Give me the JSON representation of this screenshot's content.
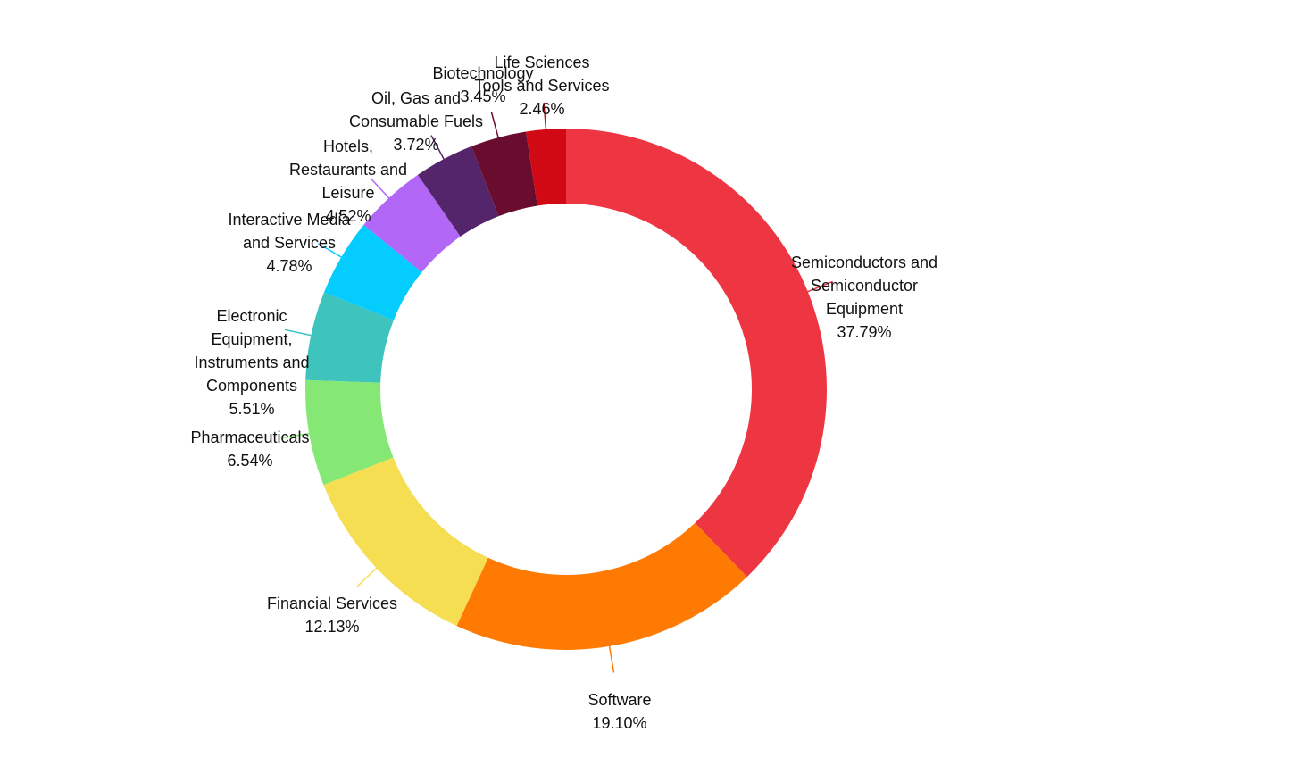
{
  "chart_data": {
    "type": "pie",
    "variant": "donut",
    "title": "",
    "categories": [
      "Semiconductors and Semiconductor Equipment",
      "Software",
      "Financial Services",
      "Pharmaceuticals",
      "Electronic Equipment, Instruments and Components",
      "Interactive Media and Services",
      "Hotels, Restaurants and Leisure",
      "Oil, Gas and Consumable Fuels",
      "Biotechnology",
      "Life Sciences Tools and Services"
    ],
    "values": [
      37.79,
      19.1,
      12.13,
      6.54,
      5.51,
      4.78,
      4.52,
      3.72,
      3.45,
      2.46
    ],
    "value_labels": [
      "37.79%",
      "19.10%",
      "12.13%",
      "6.54%",
      "5.51%",
      "4.78%",
      "4.52%",
      "3.72%",
      "3.45%",
      "2.46%"
    ],
    "label_lines": [
      [
        "Semiconductors and",
        "Semiconductor",
        "Equipment"
      ],
      [
        "Software"
      ],
      [
        "Financial Services"
      ],
      [
        "Pharmaceuticals"
      ],
      [
        "Electronic",
        "Equipment,",
        "Instruments and",
        "Components"
      ],
      [
        "Interactive Media",
        "and Services"
      ],
      [
        "Hotels,",
        "Restaurants and",
        "Leisure"
      ],
      [
        "Oil, Gas and",
        "Consumable Fuels"
      ],
      [
        "Biotechnology"
      ],
      [
        "Life Sciences",
        "Tools and Services"
      ]
    ],
    "colors": [
      "#ee3542",
      "#fe7a02",
      "#f5de52",
      "#86e874",
      "#3fc4bd",
      "#04cdfe",
      "#b267f7",
      "#55256b",
      "#690c2d",
      "#d10915"
    ],
    "clipped_top_label": "...",
    "legend": "none",
    "start": "12 o'clock",
    "direction": "clockwise"
  }
}
